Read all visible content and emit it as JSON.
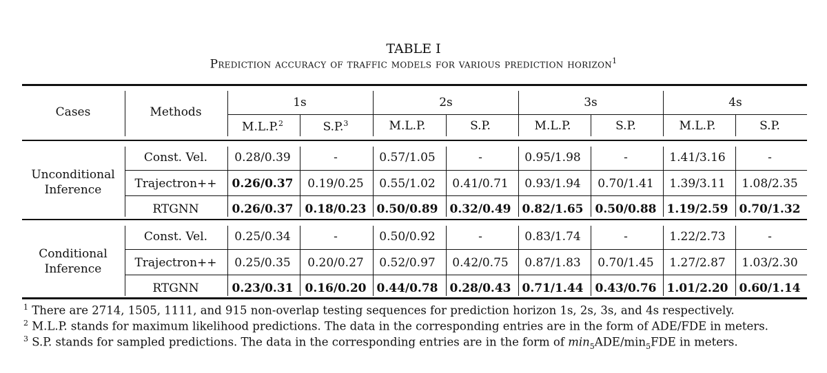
{
  "caption": {
    "title": "TABLE I",
    "subtitle": "Prediction accuracy of traffic models for various prediction horizon",
    "subtitle_footnote_mark": "1"
  },
  "headers": {
    "cases": "Cases",
    "methods": "Methods",
    "horizons": [
      "1s",
      "2s",
      "3s",
      "4s"
    ],
    "mlp": "M.L.P.",
    "sp": "S.P.",
    "mlp_mark": "2",
    "sp_mark": "3"
  },
  "groups": [
    {
      "case_line1": "Unconditional",
      "case_line2": "Inference",
      "rows": [
        {
          "method": "Const. Vel.",
          "values": [
            "0.28/0.39",
            "-",
            "0.57/1.05",
            "-",
            "0.95/1.98",
            "-",
            "1.41/3.16",
            "-"
          ],
          "bold": [
            false,
            false,
            false,
            false,
            false,
            false,
            false,
            false
          ]
        },
        {
          "method": "Trajectron++",
          "values": [
            "0.26/0.37",
            "0.19/0.25",
            "0.55/1.02",
            "0.41/0.71",
            "0.93/1.94",
            "0.70/1.41",
            "1.39/3.11",
            "1.08/2.35"
          ],
          "bold": [
            true,
            false,
            false,
            false,
            false,
            false,
            false,
            false
          ]
        },
        {
          "method": "RTGNN",
          "values": [
            "0.26/0.37",
            "0.18/0.23",
            "0.50/0.89",
            "0.32/0.49",
            "0.82/1.65",
            "0.50/0.88",
            "1.19/2.59",
            "0.70/1.32"
          ],
          "bold": [
            true,
            true,
            true,
            true,
            true,
            true,
            true,
            true
          ]
        }
      ]
    },
    {
      "case_line1": "Conditional",
      "case_line2": "Inference",
      "rows": [
        {
          "method": "Const. Vel.",
          "values": [
            "0.25/0.34",
            "-",
            "0.50/0.92",
            "-",
            "0.83/1.74",
            "-",
            "1.22/2.73",
            "-"
          ],
          "bold": [
            false,
            false,
            false,
            false,
            false,
            false,
            false,
            false
          ]
        },
        {
          "method": "Trajectron++",
          "values": [
            "0.25/0.35",
            "0.20/0.27",
            "0.52/0.97",
            "0.42/0.75",
            "0.87/1.83",
            "0.70/1.45",
            "1.27/2.87",
            "1.03/2.30"
          ],
          "bold": [
            false,
            false,
            false,
            false,
            false,
            false,
            false,
            false
          ]
        },
        {
          "method": "RTGNN",
          "values": [
            "0.23/0.31",
            "0.16/0.20",
            "0.44/0.78",
            "0.28/0.43",
            "0.71/1.44",
            "0.43/0.76",
            "1.01/2.20",
            "0.60/1.14"
          ],
          "bold": [
            true,
            true,
            true,
            true,
            true,
            true,
            true,
            true
          ]
        }
      ]
    }
  ],
  "footnotes": [
    {
      "mark": "1",
      "text": "There are 2714, 1505, 1111, and 915 non-overlap testing sequences for prediction horizon 1s, 2s, 3s, and 4s respectively."
    },
    {
      "mark": "2",
      "text": "M.L.P. stands for maximum likelihood predictions. The data in the corresponding entries are in the form of ADE/FDE in meters."
    },
    {
      "mark": "3",
      "text_before": "S.P. stands for sampled predictions. The data in the corresponding entries are in the form of ",
      "math1": "min",
      "sub1": "5",
      "text_mid": "ADE/min",
      "sub2": "5",
      "text_after": "FDE in meters."
    }
  ]
}
